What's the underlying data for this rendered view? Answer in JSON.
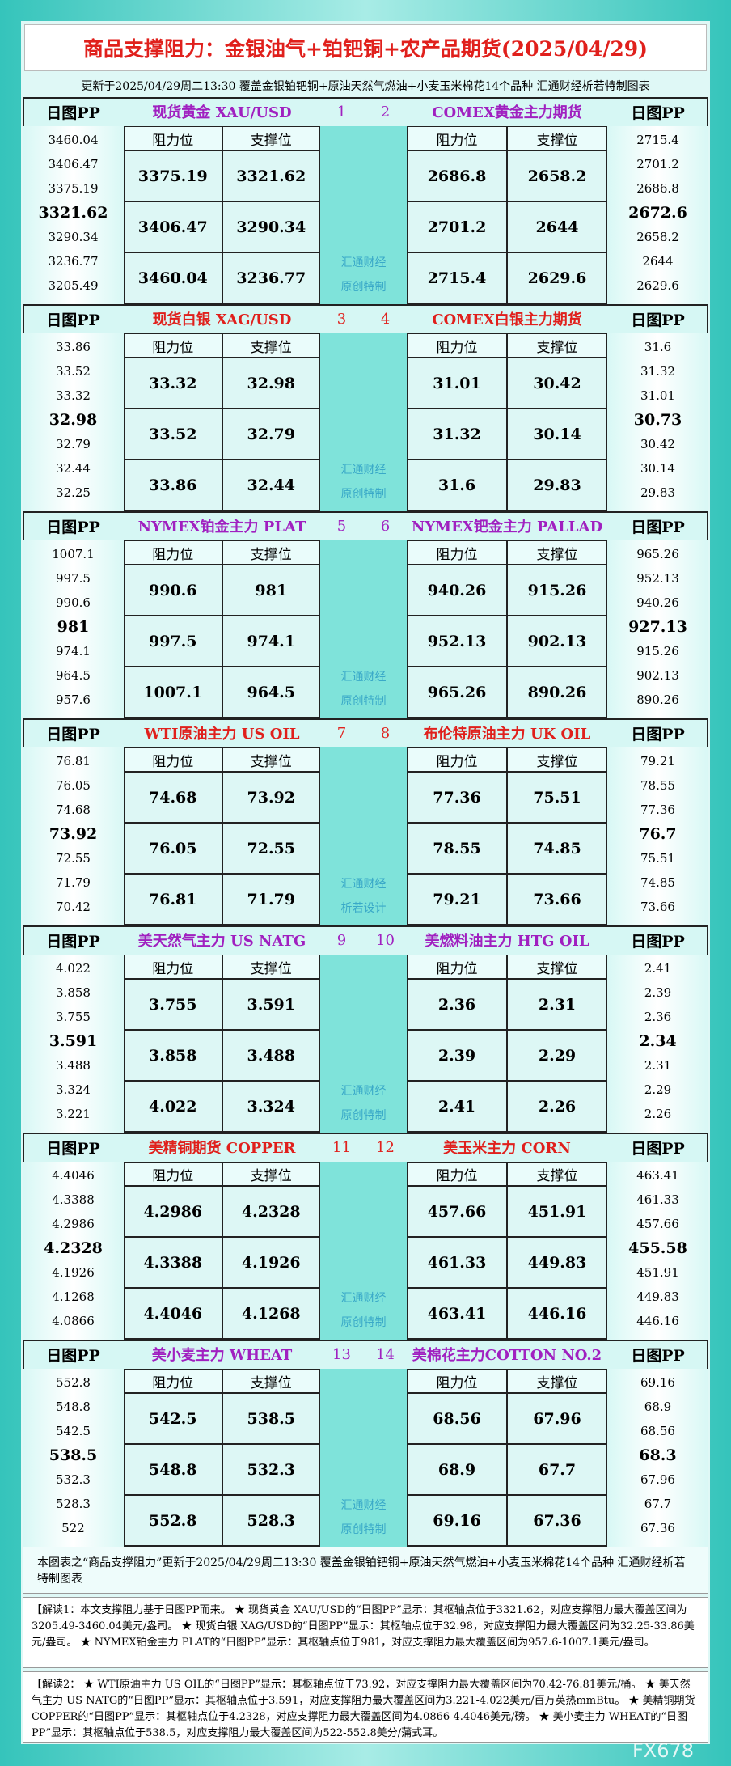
{
  "header": {
    "title": "商品支撑阻力：金银油气+铂钯铜+农产品期货(2025/04/29)",
    "subtitle": "更新于2025/04/29周二13:30  覆盖金银铂钯铜+原油天然气燃油+小麦玉米棉花14个品种  汇通财经析若特制图表"
  },
  "labels": {
    "pp": "日图PP",
    "resistance": "阻力位",
    "support": "支撑位"
  },
  "sections": [
    {
      "watermark": [
        "汇通财经",
        "原创特制"
      ],
      "left": {
        "num": "1",
        "name": "现货黄金 XAU/USD",
        "color": "#a020c0",
        "pp": [
          "3460.04",
          "3406.47",
          "3375.19",
          "3321.62",
          "3290.34",
          "3236.77",
          "3205.49"
        ],
        "rows": [
          [
            "3375.19",
            "3321.62"
          ],
          [
            "3406.47",
            "3290.34"
          ],
          [
            "3460.04",
            "3236.77"
          ]
        ]
      },
      "right": {
        "num": "2",
        "name": "COMEX黄金主力期货",
        "color": "#a020c0",
        "pp": [
          "2715.4",
          "2701.2",
          "2686.8",
          "2672.6",
          "2658.2",
          "2644",
          "2629.6"
        ],
        "rows": [
          [
            "2686.8",
            "2658.2"
          ],
          [
            "2701.2",
            "2644"
          ],
          [
            "2715.4",
            "2629.6"
          ]
        ]
      }
    },
    {
      "watermark": [
        "汇通财经",
        "原创特制"
      ],
      "left": {
        "num": "3",
        "name": "现货白银 XAG/USD",
        "color": "#e0201c",
        "pp": [
          "33.86",
          "33.52",
          "33.32",
          "32.98",
          "32.79",
          "32.44",
          "32.25"
        ],
        "rows": [
          [
            "33.32",
            "32.98"
          ],
          [
            "33.52",
            "32.79"
          ],
          [
            "33.86",
            "32.44"
          ]
        ]
      },
      "right": {
        "num": "4",
        "name": "COMEX白银主力期货",
        "color": "#e0201c",
        "pp": [
          "31.6",
          "31.32",
          "31.01",
          "30.73",
          "30.42",
          "30.14",
          "29.83"
        ],
        "rows": [
          [
            "31.01",
            "30.42"
          ],
          [
            "31.32",
            "30.14"
          ],
          [
            "31.6",
            "29.83"
          ]
        ]
      }
    },
    {
      "watermark": [
        "汇通财经",
        "原创特制"
      ],
      "left": {
        "num": "5",
        "name": "NYMEX铂金主力 PLAT",
        "color": "#a020c0",
        "pp": [
          "1007.1",
          "997.5",
          "990.6",
          "981",
          "974.1",
          "964.5",
          "957.6"
        ],
        "rows": [
          [
            "990.6",
            "981"
          ],
          [
            "997.5",
            "974.1"
          ],
          [
            "1007.1",
            "964.5"
          ]
        ]
      },
      "right": {
        "num": "6",
        "name": "NYMEX钯金主力 PALLAD",
        "color": "#a020c0",
        "pp": [
          "965.26",
          "952.13",
          "940.26",
          "927.13",
          "915.26",
          "902.13",
          "890.26"
        ],
        "rows": [
          [
            "940.26",
            "915.26"
          ],
          [
            "952.13",
            "902.13"
          ],
          [
            "965.26",
            "890.26"
          ]
        ]
      }
    },
    {
      "watermark": [
        "汇通财经",
        "析若设计"
      ],
      "left": {
        "num": "7",
        "name": "WTI原油主力 US OIL",
        "color": "#e0201c",
        "pp": [
          "76.81",
          "76.05",
          "74.68",
          "73.92",
          "72.55",
          "71.79",
          "70.42"
        ],
        "rows": [
          [
            "74.68",
            "73.92"
          ],
          [
            "76.05",
            "72.55"
          ],
          [
            "76.81",
            "71.79"
          ]
        ]
      },
      "right": {
        "num": "8",
        "name": "布伦特原油主力 UK OIL",
        "color": "#e0201c",
        "pp": [
          "79.21",
          "78.55",
          "77.36",
          "76.7",
          "75.51",
          "74.85",
          "73.66"
        ],
        "rows": [
          [
            "77.36",
            "75.51"
          ],
          [
            "78.55",
            "74.85"
          ],
          [
            "79.21",
            "73.66"
          ]
        ]
      }
    },
    {
      "watermark": [
        "汇通财经",
        "原创特制"
      ],
      "left": {
        "num": "9",
        "name": "美天然气主力 US NATG",
        "color": "#a020c0",
        "pp": [
          "4.022",
          "3.858",
          "3.755",
          "3.591",
          "3.488",
          "3.324",
          "3.221"
        ],
        "rows": [
          [
            "3.755",
            "3.591"
          ],
          [
            "3.858",
            "3.488"
          ],
          [
            "4.022",
            "3.324"
          ]
        ]
      },
      "right": {
        "num": "10",
        "name": "美燃料油主力 HTG OIL",
        "color": "#a020c0",
        "pp": [
          "2.41",
          "2.39",
          "2.36",
          "2.34",
          "2.31",
          "2.29",
          "2.26"
        ],
        "rows": [
          [
            "2.36",
            "2.31"
          ],
          [
            "2.39",
            "2.29"
          ],
          [
            "2.41",
            "2.26"
          ]
        ]
      }
    },
    {
      "watermark": [
        "汇通财经",
        "原创特制"
      ],
      "left": {
        "num": "11",
        "name": "美精铜期货 COPPER",
        "color": "#e0201c",
        "pp": [
          "4.4046",
          "4.3388",
          "4.2986",
          "4.2328",
          "4.1926",
          "4.1268",
          "4.0866"
        ],
        "rows": [
          [
            "4.2986",
            "4.2328"
          ],
          [
            "4.3388",
            "4.1926"
          ],
          [
            "4.4046",
            "4.1268"
          ]
        ]
      },
      "right": {
        "num": "12",
        "name": "美玉米主力 CORN",
        "color": "#e0201c",
        "pp": [
          "463.41",
          "461.33",
          "457.66",
          "455.58",
          "451.91",
          "449.83",
          "446.16"
        ],
        "rows": [
          [
            "457.66",
            "451.91"
          ],
          [
            "461.33",
            "449.83"
          ],
          [
            "463.41",
            "446.16"
          ]
        ]
      }
    },
    {
      "watermark": [
        "汇通财经",
        "原创特制"
      ],
      "left": {
        "num": "13",
        "name": "美小麦主力 WHEAT",
        "color": "#a020c0",
        "pp": [
          "552.8",
          "548.8",
          "542.5",
          "538.5",
          "532.3",
          "528.3",
          "522"
        ],
        "rows": [
          [
            "542.5",
            "538.5"
          ],
          [
            "548.8",
            "532.3"
          ],
          [
            "552.8",
            "528.3"
          ]
        ]
      },
      "right": {
        "num": "14",
        "name": "美棉花主力COTTON NO.2",
        "color": "#a020c0",
        "pp": [
          "69.16",
          "68.9",
          "68.56",
          "68.3",
          "67.96",
          "67.7",
          "67.36"
        ],
        "rows": [
          [
            "68.56",
            "67.96"
          ],
          [
            "68.9",
            "67.7"
          ],
          [
            "69.16",
            "67.36"
          ]
        ]
      }
    }
  ],
  "footer": {
    "caption": "本图表之“商品支撑阻力”更新于2025/04/29周二13:30 覆盖金银铂钯铜+原油天然气燃油+小麦玉米棉花14个品种 汇通财经析若特制图表",
    "notes": [
      "【解读1：本文支撑阻力基于日图PP而来。 ★ 现货黄金 XAU/USD的“日图PP”显示：其枢轴点位于3321.62，对应支撑阻力最大覆盖区间为3205.49-3460.04美元/盎司。 ★ 现货白银 XAG/USD的“日图PP”显示：其枢轴点位于32.98，对应支撑阻力最大覆盖区间为32.25-33.86美元/盎司。 ★ NYMEX铂金主力 PLAT的“日图PP”显示：其枢轴点位于981，对应支撑阻力最大覆盖区间为957.6-1007.1美元/盎司。",
      "【解读2： ★ WTI原油主力 US OIL的“日图PP”显示：其枢轴点位于73.92，对应支撑阻力最大覆盖区间为70.42-76.81美元/桶。 ★ 美天然气主力 US NATG的“日图PP”显示：其枢轴点位于3.591，对应支撑阻力最大覆盖区间为3.221-4.022美元/百万英热mmBtu。 ★ 美精铜期货 COPPER的“日图PP”显示：其枢轴点位于4.2328，对应支撑阻力最大覆盖区间为4.0866-4.4046美元/磅。 ★ 美小麦主力 WHEAT的“日图PP”显示：其枢轴点位于538.5，对应支撑阻力最大覆盖区间为522-552.8美分/蒲式耳。"
    ],
    "watermark": "FX678"
  }
}
